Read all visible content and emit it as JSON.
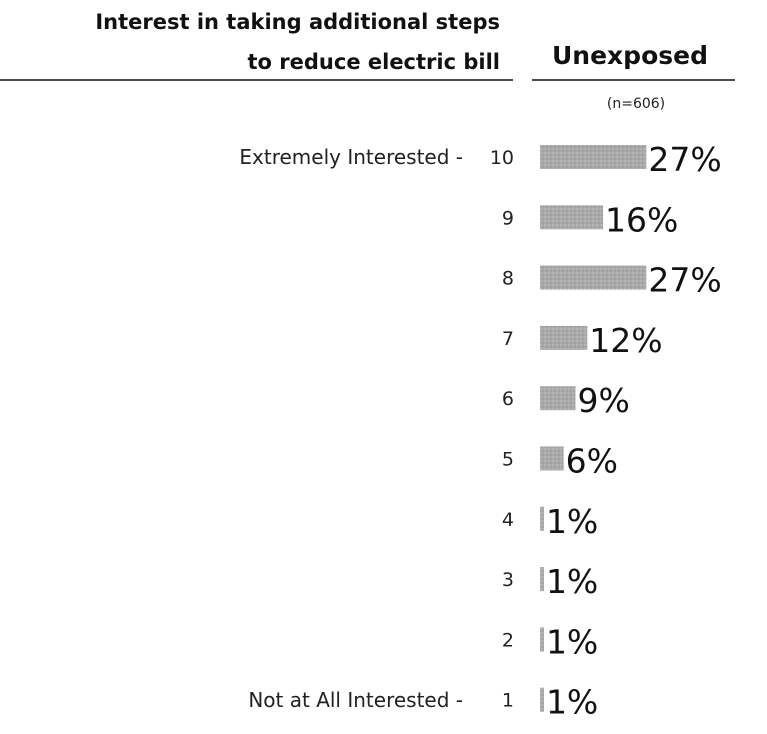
{
  "chart_data": {
    "type": "bar",
    "orientation": "horizontal",
    "title_lines": [
      "Interest in taking additional steps",
      "to reduce electric bill"
    ],
    "series": [
      {
        "name": "Unexposed",
        "sample_size_label": "(n=606)",
        "values": [
          27,
          16,
          27,
          12,
          9,
          6,
          1,
          1,
          1,
          1
        ],
        "labels": [
          "27%",
          "16%",
          "27%",
          "12%",
          "9%",
          "6%",
          "1%",
          "1%",
          "1%",
          "1%"
        ]
      }
    ],
    "categories": [
      "10",
      "9",
      "8",
      "7",
      "6",
      "5",
      "4",
      "3",
      "2",
      "1"
    ],
    "scale_anchor_labels": {
      "top": "Extremely Interested -",
      "bottom": "Not at All Interested -"
    },
    "bar_color": "#aaaaaa",
    "grid": false,
    "legend": "none"
  }
}
